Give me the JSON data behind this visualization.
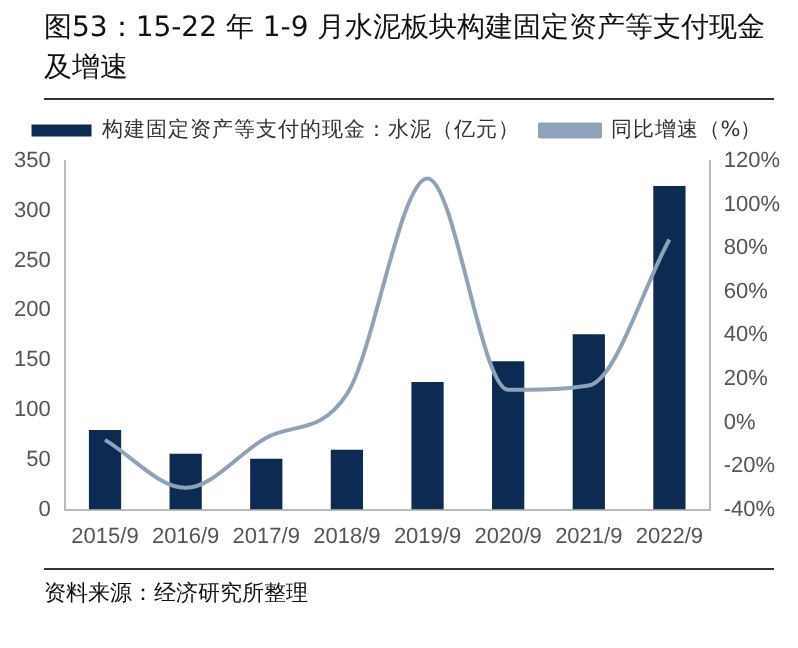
{
  "chart_data": {
    "type": "bar",
    "title": "图53：15-22 年 1-9 月水泥板块构建固定资产等支付现金及增速",
    "categories": [
      "2015/9",
      "2016/9",
      "2017/9",
      "2018/9",
      "2019/9",
      "2020/9",
      "2021/9",
      "2022/9"
    ],
    "series": [
      {
        "name": "构建固定资产等支付的现金：水泥（亿元）",
        "color": "#0d2a52",
        "values": [
          80,
          56,
          51,
          60,
          128,
          149,
          176,
          325
        ]
      },
      {
        "name": "同比增速（%）",
        "type": "line",
        "axis": "y2",
        "color": "#8fa3b8",
        "values": [
          -8,
          -30,
          -7,
          13,
          112,
          15,
          17,
          84
        ]
      }
    ],
    "ylim": [
      0,
      350
    ],
    "yticks": [
      0,
      50,
      100,
      150,
      200,
      250,
      300,
      350
    ],
    "y2lim": [
      -40,
      120
    ],
    "y2ticks": [
      {
        "value": -40,
        "label": "-40%"
      },
      {
        "value": -20,
        "label": "-20%"
      },
      {
        "value": 0,
        "label": "0%"
      },
      {
        "value": 20,
        "label": "20%"
      },
      {
        "value": 40,
        "label": "40%"
      },
      {
        "value": 60,
        "label": "60%"
      },
      {
        "value": 80,
        "label": "80%"
      },
      {
        "value": 100,
        "label": "100%"
      },
      {
        "value": 120,
        "label": "120%"
      }
    ],
    "grid": false,
    "legend": "top",
    "marker": "none",
    "annotations": [
      "资料来源：经济研究所整理"
    ]
  }
}
